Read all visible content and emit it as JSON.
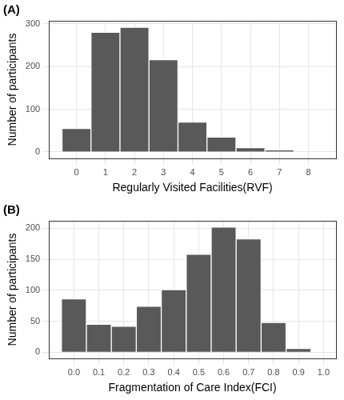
{
  "chart_data": [
    {
      "type": "histogram",
      "title": "(A)",
      "xlabel": "Regularly Visited Facilities(RVF)",
      "ylabel": "Number of participants",
      "bins": [
        -0.5,
        0.5,
        1.5,
        2.5,
        3.5,
        4.5,
        5.5,
        6.5,
        7.5,
        8.5
      ],
      "values": [
        55,
        280,
        292,
        216,
        70,
        35,
        10,
        5,
        0
      ],
      "color": "#595959",
      "xlim": [
        -0.95,
        8.95
      ],
      "xticks": [
        0,
        1,
        2,
        3,
        4,
        5,
        6,
        7,
        8
      ],
      "ylim": [
        -15,
        307
      ],
      "yticks": [
        0,
        100,
        200,
        300
      ],
      "grid": true
    },
    {
      "type": "histogram",
      "title": "(B)",
      "xlabel": "Fragmentation of Care Index(FCI)",
      "ylabel": "Number of participants",
      "bins": [
        -0.05,
        0.05,
        0.15,
        0.25,
        0.35,
        0.45,
        0.55,
        0.65,
        0.75,
        0.85,
        0.95
      ],
      "values": [
        86,
        45,
        42,
        74,
        101,
        158,
        202,
        183,
        48,
        6
      ],
      "color": "#595959",
      "xlim": [
        -0.1,
        1.05
      ],
      "xticks": [
        {
          "value": 0,
          "label": "0.0"
        },
        0.1,
        0.2,
        0.3,
        0.4,
        0.5,
        0.6,
        0.7,
        0.8,
        0.9,
        {
          "value": 1,
          "label": "1.0"
        }
      ],
      "ylim": [
        -10,
        212
      ],
      "yticks": [
        0,
        50,
        100,
        150,
        200
      ],
      "grid": true
    }
  ]
}
